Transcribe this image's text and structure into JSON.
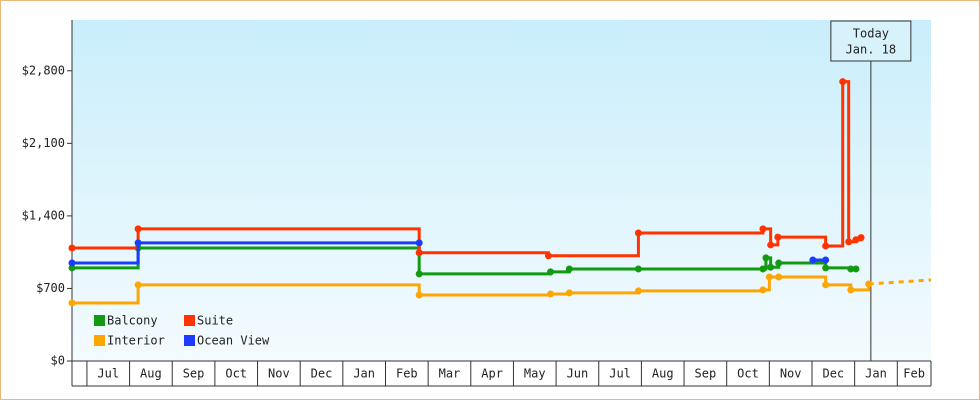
{
  "chart_data": {
    "type": "step-line",
    "xlim": [
      -0.35,
      19.79
    ],
    "xticks": [
      {
        "value": 0.5,
        "label": "Jul"
      },
      {
        "value": 1.5,
        "label": "Aug"
      },
      {
        "value": 2.5,
        "label": "Sep"
      },
      {
        "value": 3.5,
        "label": "Oct"
      },
      {
        "value": 4.5,
        "label": "Nov"
      },
      {
        "value": 5.5,
        "label": "Dec"
      },
      {
        "value": 6.5,
        "label": "Jan"
      },
      {
        "value": 7.5,
        "label": "Feb"
      },
      {
        "value": 8.5,
        "label": "Mar"
      },
      {
        "value": 9.5,
        "label": "Apr"
      },
      {
        "value": 10.5,
        "label": "May"
      },
      {
        "value": 11.5,
        "label": "Jun"
      },
      {
        "value": 12.5,
        "label": "Jul"
      },
      {
        "value": 13.5,
        "label": "Aug"
      },
      {
        "value": 14.5,
        "label": "Sep"
      },
      {
        "value": 15.5,
        "label": "Oct"
      },
      {
        "value": 16.5,
        "label": "Nov"
      },
      {
        "value": 17.5,
        "label": "Dec"
      },
      {
        "value": 18.5,
        "label": "Jan"
      },
      {
        "value": 19.5,
        "label": "Feb"
      }
    ],
    "ylim": [
      0,
      3290
    ],
    "yticks": [
      {
        "value": 0,
        "label": "$0"
      },
      {
        "value": 700,
        "label": "$700"
      },
      {
        "value": 1400,
        "label": "$1,400"
      },
      {
        "value": 2100,
        "label": "$2,100"
      },
      {
        "value": 2800,
        "label": "$2,800"
      }
    ],
    "today": {
      "x": 18.38,
      "label": [
        "Today",
        "Jan. 18"
      ]
    },
    "series": [
      {
        "name": "Balcony",
        "color": "#139a13",
        "x": [
          -0.35,
          1.2,
          7.79,
          10.87,
          11.31,
          12.93,
          15.85,
          15.92,
          16.03,
          16.22,
          17.32,
          17.91,
          18.03
        ],
        "values": [
          898,
          1090,
          840,
          860,
          888,
          888,
          888,
          995,
          905,
          945,
          898,
          888,
          888
        ]
      },
      {
        "name": "Suite",
        "color": "#ff3300",
        "x": [
          -0.35,
          1.2,
          7.79,
          10.82,
          12.93,
          15.85,
          16.03,
          16.2,
          17.32,
          17.72,
          17.86,
          18.03,
          18.15
        ],
        "values": [
          1090,
          1275,
          1045,
          1015,
          1235,
          1275,
          1120,
          1195,
          1110,
          2695,
          1150,
          1170,
          1190
        ]
      },
      {
        "name": "Interior",
        "color": "#ffa500",
        "x": [
          -0.35,
          1.2,
          7.79,
          10.87,
          11.31,
          12.93,
          15.85,
          16.0,
          16.22,
          17.32,
          17.91,
          18.33
        ],
        "values": [
          560,
          735,
          637,
          647,
          657,
          676,
          686,
          811,
          811,
          735,
          686,
          743
        ],
        "projection": {
          "x": [
            18.33,
            19.79
          ],
          "values": [
            743,
            782
          ]
        }
      },
      {
        "name": "Ocean View",
        "color": "#1a3cff",
        "x": [
          -0.35,
          1.2,
          7.79,
          12.0,
          17.02,
          17.32
        ],
        "values": [
          946,
          1140,
          1140,
          null,
          975,
          975
        ]
      }
    ]
  }
}
